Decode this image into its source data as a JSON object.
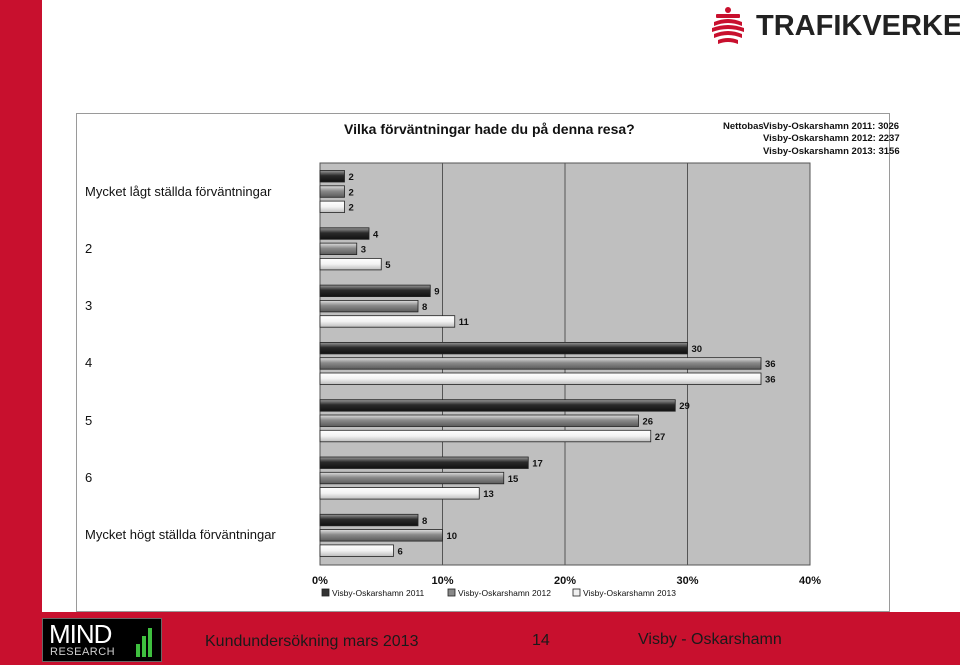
{
  "header": {
    "brand": "TRAFIKVERKET"
  },
  "chart_data": {
    "type": "bar",
    "orientation": "horizontal",
    "title": "Vilka förväntningar hade du på denna resa?",
    "nettobas_label": "Nettobas",
    "nettobas": [
      {
        "name": "Visby-Oskarshamn 2011:",
        "value": "3026"
      },
      {
        "name": "Visby-Oskarshamn 2012:",
        "value": "2237"
      },
      {
        "name": "Visby-Oskarshamn 2013:",
        "value": "3156"
      }
    ],
    "categories": [
      "Mycket lågt ställda förväntningar",
      "2",
      "3",
      "4",
      "5",
      "6",
      "Mycket högt ställda förväntningar"
    ],
    "series": [
      {
        "name": "Visby-Oskarshamn 2011",
        "values": [
          2,
          4,
          9,
          30,
          29,
          17,
          8
        ]
      },
      {
        "name": "Visby-Oskarshamn 2012",
        "values": [
          2,
          3,
          8,
          36,
          26,
          15,
          10
        ]
      },
      {
        "name": "Visby-Oskarshamn 2013",
        "values": [
          2,
          5,
          11,
          36,
          27,
          13,
          6
        ]
      }
    ],
    "xlim": [
      0,
      40
    ],
    "x_ticks": [
      "0%",
      "10%",
      "20%",
      "30%",
      "40%"
    ],
    "grid": true,
    "legend_position": "bottom"
  },
  "footer": {
    "logo_word": "MIND",
    "logo_sub": "RESEARCH",
    "survey": "Kundundersökning mars 2013",
    "page_number": "14",
    "route": "Visby - Oskarshamn"
  }
}
